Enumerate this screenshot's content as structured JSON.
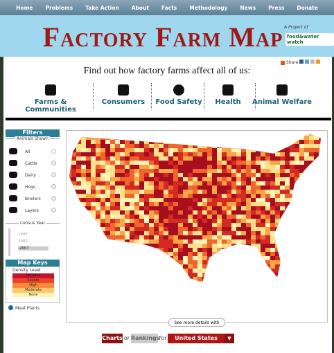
{
  "nav": [
    "Home",
    "Problems",
    "Take Action",
    "About",
    "Facts",
    "Methodology",
    "News",
    "Press",
    "Donate"
  ],
  "header": {
    "title": "Factory Farm Map",
    "project_label": "A Project of",
    "org": "food&water watch"
  },
  "share": "Share",
  "tagline": "Find out how factory farms affect all of us:",
  "topics": [
    "Farms & Communities",
    "Consumers",
    "Food Safety",
    "Health",
    "Animal Welfare"
  ],
  "filters": {
    "title": "Filters",
    "animals_label": "Animals Shown",
    "animals": [
      "All",
      "Cattle",
      "Dairy",
      "Hogs",
      "Broilers",
      "Layers"
    ],
    "census_label": "Census Year",
    "years": [
      "1997",
      "2002",
      "2007"
    ]
  },
  "map_keys": {
    "title": "Map Keys",
    "density_label": "Density Level",
    "levels": [
      "Extreme",
      "Severe",
      "High",
      "Moderate",
      "None"
    ],
    "meat_plants": "Meat Plants"
  },
  "map": {
    "details_button": "See more details with"
  },
  "footer": {
    "charts": "Charts",
    "or": "or",
    "rankings": "Rankings",
    "for": "for",
    "region": "United States"
  }
}
